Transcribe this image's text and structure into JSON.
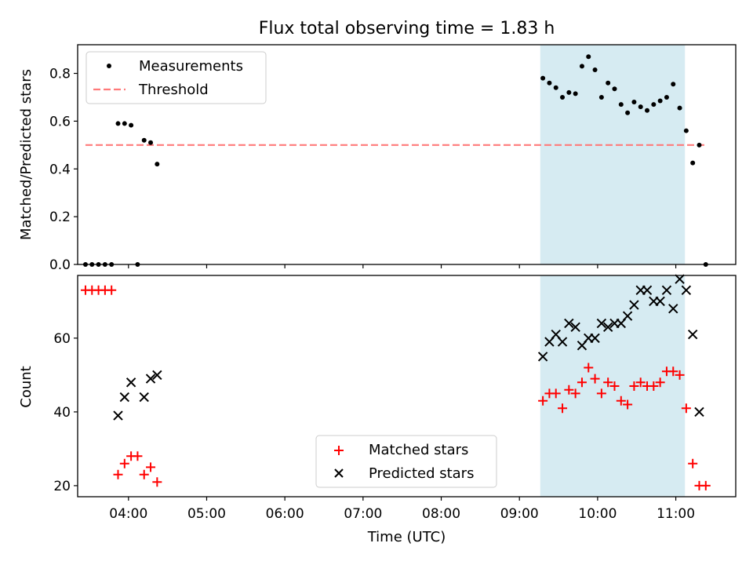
{
  "chart_data": [
    {
      "type": "scatter",
      "title": "Flux total observing time = 1.83 h",
      "xlabel": "",
      "ylabel": "Matched/Predicted stars",
      "xlim": [
        "03:21",
        "11:46"
      ],
      "ylim": [
        0,
        0.92
      ],
      "yticks": [
        0.0,
        0.2,
        0.4,
        0.6,
        0.8
      ],
      "ytick_labels": [
        "0.0",
        "0.2",
        "0.4",
        "0.6",
        "0.8"
      ],
      "grid": false,
      "legend_position": "top-left",
      "shaded_span": {
        "start": "09:16",
        "end": "11:07",
        "color": "#add8e6"
      },
      "series": [
        {
          "name": "Measurements",
          "marker": "dot",
          "color": "#000000",
          "points": [
            [
              "03:27",
              0.0
            ],
            [
              "03:32",
              0.0
            ],
            [
              "03:37",
              0.0
            ],
            [
              "03:42",
              0.0
            ],
            [
              "03:47",
              0.0
            ],
            [
              "03:52",
              0.59
            ],
            [
              "03:57",
              0.59
            ],
            [
              "04:02",
              0.583
            ],
            [
              "04:07",
              0.0
            ],
            [
              "04:12",
              0.52
            ],
            [
              "04:17",
              0.51
            ],
            [
              "04:22",
              0.42
            ],
            [
              "09:18",
              0.78
            ],
            [
              "09:23",
              0.76
            ],
            [
              "09:28",
              0.74
            ],
            [
              "09:33",
              0.7
            ],
            [
              "09:38",
              0.72
            ],
            [
              "09:43",
              0.715
            ],
            [
              "09:48",
              0.83
            ],
            [
              "09:53",
              0.87
            ],
            [
              "09:58",
              0.815
            ],
            [
              "10:03",
              0.7
            ],
            [
              "10:08",
              0.76
            ],
            [
              "10:13",
              0.735
            ],
            [
              "10:18",
              0.67
            ],
            [
              "10:23",
              0.635
            ],
            [
              "10:28",
              0.68
            ],
            [
              "10:33",
              0.66
            ],
            [
              "10:38",
              0.645
            ],
            [
              "10:43",
              0.67
            ],
            [
              "10:48",
              0.685
            ],
            [
              "10:53",
              0.7
            ],
            [
              "10:58",
              0.755
            ],
            [
              "11:03",
              0.655
            ],
            [
              "11:08",
              0.56
            ],
            [
              "11:13",
              0.425
            ],
            [
              "11:18",
              0.5
            ],
            [
              "11:23",
              0.0
            ]
          ]
        },
        {
          "name": "Threshold",
          "marker": "dashed-line",
          "color": "#ff7a7a",
          "points": [
            [
              "03:27",
              0.5
            ],
            [
              "11:23",
              0.5
            ]
          ]
        }
      ]
    },
    {
      "type": "scatter",
      "title": "",
      "xlabel": "Time (UTC)",
      "ylabel": "Count",
      "xlim": [
        "03:21",
        "11:46"
      ],
      "ylim": [
        17,
        77
      ],
      "xticks": [
        "04:00",
        "05:00",
        "06:00",
        "07:00",
        "08:00",
        "09:00",
        "10:00",
        "11:00"
      ],
      "yticks": [
        20,
        40,
        60
      ],
      "ytick_labels": [
        "20",
        "40",
        "60"
      ],
      "grid": false,
      "legend_position": "lower-center",
      "shaded_span": {
        "start": "09:16",
        "end": "11:07",
        "color": "#add8e6"
      },
      "series": [
        {
          "name": "Matched stars",
          "marker": "plus",
          "color": "#ff0000",
          "points": [
            [
              "03:27",
              73
            ],
            [
              "03:32",
              73
            ],
            [
              "03:37",
              73
            ],
            [
              "03:42",
              73
            ],
            [
              "03:47",
              73
            ],
            [
              "03:52",
              23
            ],
            [
              "03:57",
              26
            ],
            [
              "04:02",
              28
            ],
            [
              "04:07",
              28
            ],
            [
              "04:12",
              23
            ],
            [
              "04:17",
              25
            ],
            [
              "04:22",
              21
            ],
            [
              "09:18",
              43
            ],
            [
              "09:23",
              45
            ],
            [
              "09:28",
              45
            ],
            [
              "09:33",
              41
            ],
            [
              "09:38",
              46
            ],
            [
              "09:43",
              45
            ],
            [
              "09:48",
              48
            ],
            [
              "09:53",
              52
            ],
            [
              "09:58",
              49
            ],
            [
              "10:03",
              45
            ],
            [
              "10:08",
              48
            ],
            [
              "10:13",
              47
            ],
            [
              "10:18",
              43
            ],
            [
              "10:23",
              42
            ],
            [
              "10:28",
              47
            ],
            [
              "10:33",
              48
            ],
            [
              "10:38",
              47
            ],
            [
              "10:43",
              47
            ],
            [
              "10:48",
              48
            ],
            [
              "10:53",
              51
            ],
            [
              "10:58",
              51
            ],
            [
              "11:03",
              50
            ],
            [
              "11:08",
              41
            ],
            [
              "11:13",
              26
            ],
            [
              "11:18",
              20
            ],
            [
              "11:23",
              20
            ]
          ]
        },
        {
          "name": "Predicted stars",
          "marker": "x",
          "color": "#000000",
          "points": [
            [
              "03:52",
              39
            ],
            [
              "03:57",
              44
            ],
            [
              "04:02",
              48
            ],
            [
              "04:12",
              44
            ],
            [
              "04:17",
              49
            ],
            [
              "04:22",
              50
            ],
            [
              "09:18",
              55
            ],
            [
              "09:23",
              59
            ],
            [
              "09:28",
              61
            ],
            [
              "09:33",
              59
            ],
            [
              "09:38",
              64
            ],
            [
              "09:43",
              63
            ],
            [
              "09:48",
              58
            ],
            [
              "09:53",
              60
            ],
            [
              "09:58",
              60
            ],
            [
              "10:03",
              64
            ],
            [
              "10:08",
              63
            ],
            [
              "10:13",
              64
            ],
            [
              "10:18",
              64
            ],
            [
              "10:23",
              66
            ],
            [
              "10:28",
              69
            ],
            [
              "10:33",
              73
            ],
            [
              "10:38",
              73
            ],
            [
              "10:43",
              70
            ],
            [
              "10:48",
              70
            ],
            [
              "10:53",
              73
            ],
            [
              "10:58",
              68
            ],
            [
              "11:03",
              76
            ],
            [
              "11:08",
              73
            ],
            [
              "11:13",
              61
            ],
            [
              "11:18",
              40
            ]
          ]
        }
      ]
    }
  ]
}
